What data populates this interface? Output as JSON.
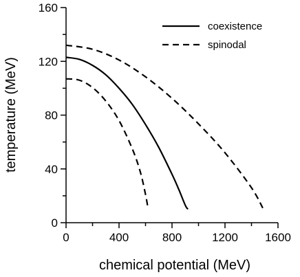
{
  "chart_data": {
    "type": "line",
    "xlabel": "chemical potential (MeV)",
    "ylabel": "temperature (MeV)",
    "xlim": [
      0,
      1600
    ],
    "ylim": [
      0,
      160
    ],
    "x_ticks": [
      0,
      400,
      800,
      1200,
      1600
    ],
    "y_ticks": [
      0,
      40,
      80,
      120,
      160
    ],
    "x_tick_labels": [
      "0",
      "400",
      "800",
      "1200",
      "1600"
    ],
    "y_tick_labels": [
      "0",
      "40",
      "80",
      "120",
      "160"
    ],
    "grid": false,
    "legend_position": "top-right",
    "series": [
      {
        "name": "coexistence",
        "style": "solid",
        "color": "#000000",
        "x": [
          0,
          100,
          200,
          300,
          400,
          500,
          600,
          700,
          800,
          850,
          900,
          920
        ],
        "y": [
          123,
          121.5,
          117,
          110,
          100,
          88,
          73,
          56,
          36,
          25,
          13,
          10
        ]
      },
      {
        "name": "spinodal",
        "style": "dashed",
        "color": "#000000",
        "x": [
          0,
          100,
          200,
          300,
          400,
          500,
          560,
          600,
          620
        ],
        "y": [
          107,
          106,
          100.5,
          90.5,
          76,
          55,
          38,
          21,
          10
        ]
      },
      {
        "name": "spinodal",
        "style": "dashed",
        "color": "#000000",
        "x": [
          0,
          200,
          400,
          600,
          800,
          1000,
          1200,
          1400,
          1490
        ],
        "y": [
          132,
          129,
          121,
          108.5,
          92.5,
          73.5,
          52,
          26,
          10
        ]
      }
    ]
  }
}
